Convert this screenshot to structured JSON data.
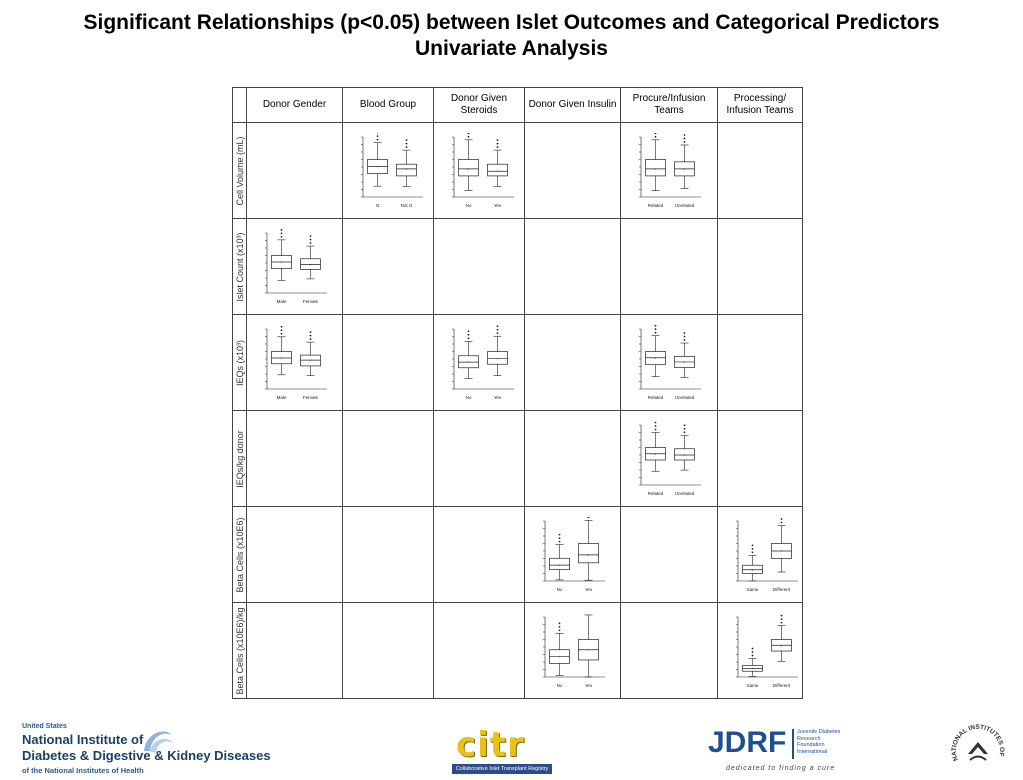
{
  "title": {
    "line1": "Significant Relationships (p<0.05) between Islet Outcomes and Categorical Predictors",
    "line2": "Univariate Analysis"
  },
  "columns": [
    {
      "label": "Donor Gender"
    },
    {
      "label": "Blood Group"
    },
    {
      "label": "Donor Given Steroids"
    },
    {
      "label": "Donor Given Insulin"
    },
    {
      "label": "Procure/Infusion Teams"
    },
    {
      "label": "Processing/ Infusion Teams"
    }
  ],
  "rows": [
    {
      "label": "Cell Volume (mL)"
    },
    {
      "label": "Islet Count (x10³)"
    },
    {
      "label": "IEQs (x10³)"
    },
    {
      "label": "IEQs/kg donor"
    },
    {
      "label": "Beta Cells (x10E6)"
    },
    {
      "label": "Beta Cells (x10E6)/kg"
    }
  ],
  "chart_data": [
    {
      "type": "boxplot",
      "row": 0,
      "col": 1,
      "categories": [
        "O",
        "Not O"
      ],
      "boxes": [
        {
          "q1": 5,
          "median": 6.5,
          "q3": 8
        },
        {
          "q1": 4.5,
          "median": 6,
          "q3": 7
        }
      ]
    },
    {
      "type": "boxplot",
      "row": 0,
      "col": 2,
      "categories": [
        "No",
        "Yes"
      ],
      "boxes": [
        {
          "q1": 4.5,
          "median": 6,
          "q3": 8
        },
        {
          "q1": 4.5,
          "median": 5.5,
          "q3": 7
        }
      ]
    },
    {
      "type": "boxplot",
      "row": 0,
      "col": 4,
      "categories": [
        "Related",
        "Unrelated"
      ],
      "boxes": [
        {
          "q1": 4.5,
          "median": 6,
          "q3": 8
        },
        {
          "q1": 4.5,
          "median": 6,
          "q3": 7.5
        }
      ]
    },
    {
      "type": "boxplot",
      "row": 1,
      "col": 0,
      "categories": [
        "Male",
        "Female"
      ],
      "boxes": [
        {
          "q1": 300,
          "median": 380,
          "q3": 460
        },
        {
          "q1": 290,
          "median": 350,
          "q3": 420
        }
      ]
    },
    {
      "type": "boxplot",
      "row": 2,
      "col": 0,
      "categories": [
        "Male",
        "Female"
      ],
      "boxes": [
        {
          "q1": 350,
          "median": 430,
          "q3": 520
        },
        {
          "q1": 320,
          "median": 400,
          "q3": 470
        }
      ]
    },
    {
      "type": "boxplot",
      "row": 2,
      "col": 2,
      "categories": [
        "No",
        "Yes"
      ],
      "boxes": [
        {
          "q1": 300,
          "median": 380,
          "q3": 470
        },
        {
          "q1": 350,
          "median": 430,
          "q3": 530
        }
      ]
    },
    {
      "type": "boxplot",
      "row": 2,
      "col": 4,
      "categories": [
        "Related",
        "Unrelated"
      ],
      "boxes": [
        {
          "q1": 350,
          "median": 450,
          "q3": 540
        },
        {
          "q1": 310,
          "median": 390,
          "q3": 470
        }
      ]
    },
    {
      "type": "boxplot",
      "row": 3,
      "col": 4,
      "categories": [
        "Related",
        "Unrelated"
      ],
      "boxes": [
        {
          "q1": 4,
          "median": 5,
          "q3": 6
        },
        {
          "q1": 4,
          "median": 4.8,
          "q3": 5.8
        }
      ]
    },
    {
      "type": "boxplot",
      "row": 4,
      "col": 3,
      "categories": [
        "No",
        "Yes"
      ],
      "boxes": [
        {
          "q1": 1000,
          "median": 1400,
          "q3": 2000
        },
        {
          "q1": 1600,
          "median": 2300,
          "q3": 3300
        }
      ]
    },
    {
      "type": "boxplot",
      "row": 4,
      "col": 5,
      "categories": [
        "Same",
        "Different"
      ],
      "boxes": [
        {
          "q1": 100,
          "median": 150,
          "q3": 210
        },
        {
          "q1": 300,
          "median": 400,
          "q3": 500
        }
      ]
    },
    {
      "type": "boxplot",
      "row": 5,
      "col": 3,
      "categories": [
        "No",
        "Yes"
      ],
      "boxes": [
        {
          "q1": 2,
          "median": 3,
          "q3": 4
        },
        {
          "q1": 2.5,
          "median": 4,
          "q3": 5.5
        }
      ]
    },
    {
      "type": "boxplot",
      "row": 5,
      "col": 5,
      "categories": [
        "Same",
        "Different"
      ],
      "boxes": [
        {
          "q1": 2,
          "median": 3,
          "q3": 4
        },
        {
          "q1": 9,
          "median": 11,
          "q3": 13
        }
      ]
    }
  ],
  "footer": {
    "nih": {
      "small": "United States",
      "line1": "National Institute of",
      "line2": "Diabetes & Digestive & Kidney Diseases",
      "line3": "of the National Institutes of Health"
    },
    "citr": {
      "word": "citr",
      "bar": "Collaborative Islet Transplant Registry"
    },
    "jdrf": {
      "word": "JDRF",
      "box": "Juvenile Diabetes Research Foundation International",
      "tag": "dedicated to finding a cure"
    },
    "seal": {
      "text": "NATIONAL INSTITUTES OF HEALTH"
    }
  }
}
